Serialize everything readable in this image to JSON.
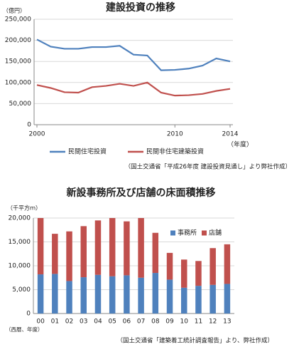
{
  "chart_data": [
    {
      "type": "line",
      "title": "建設投資の推移",
      "y_label": "（億円）",
      "x_label": "（年度）",
      "source": "（国土交通省「平成26年度 建設投資見通し」より弊社作成）",
      "x": [
        2000,
        2001,
        2002,
        2003,
        2004,
        2005,
        2006,
        2007,
        2008,
        2009,
        2010,
        2011,
        2012,
        2013,
        2014
      ],
      "xlim": [
        2000,
        2014
      ],
      "xticks": [
        2000,
        2010,
        2014
      ],
      "ylim": [
        0,
        250000
      ],
      "yticks": [
        {
          "value": 0,
          "label": "0"
        },
        {
          "value": 50000,
          "label": "50,000"
        },
        {
          "value": 100000,
          "label": "100,000"
        },
        {
          "value": 150000,
          "label": "150,000"
        },
        {
          "value": 200000,
          "label": "200,000"
        },
        {
          "value": 250000,
          "label": "250,000"
        }
      ],
      "grid": true,
      "legend": "bottom",
      "series": [
        {
          "name": "民間住宅投資",
          "color": "#4f81bd",
          "values": [
            202000,
            185000,
            180000,
            180000,
            184000,
            184000,
            187000,
            166000,
            164000,
            129000,
            130000,
            133000,
            140000,
            157000,
            150000
          ]
        },
        {
          "name": "民間非住宅建築投資",
          "color": "#c0504d",
          "values": [
            94000,
            87000,
            77000,
            76000,
            89000,
            92000,
            97000,
            92000,
            100000,
            76000,
            69000,
            70000,
            73000,
            80000,
            85000
          ]
        }
      ]
    },
    {
      "type": "stacked_bar",
      "title": "新設事務所及び店舗の床面積推移",
      "y_label": "（千平方ｍ）",
      "x_label": "（西暦、年度）",
      "source": "（国土交通省「建築着工統計調査報告」より、弊社作成）",
      "categories": [
        "00",
        "01",
        "02",
        "03",
        "04",
        "05",
        "06",
        "07",
        "08",
        "09",
        "10",
        "11",
        "12",
        "13"
      ],
      "ylim": [
        0,
        20000
      ],
      "yticks": [
        {
          "value": 0,
          "label": "0"
        },
        {
          "value": 5000,
          "label": "5,000"
        },
        {
          "value": 10000,
          "label": "10,000"
        },
        {
          "value": 15000,
          "label": "15,000"
        },
        {
          "value": 20000,
          "label": "20,000"
        }
      ],
      "grid": true,
      "legend": "upper right",
      "series": [
        {
          "name": "事務所",
          "color": "#4f81bd",
          "values": [
            8200,
            8300,
            6800,
            7600,
            8100,
            7800,
            8000,
            7500,
            8500,
            7100,
            5400,
            5800,
            6000,
            6200
          ]
        },
        {
          "name": "店舗",
          "color": "#c0504d",
          "values": [
            11800,
            8400,
            10400,
            10700,
            11400,
            12200,
            11300,
            12500,
            8400,
            5600,
            5900,
            5200,
            7700,
            8300
          ]
        }
      ]
    }
  ]
}
